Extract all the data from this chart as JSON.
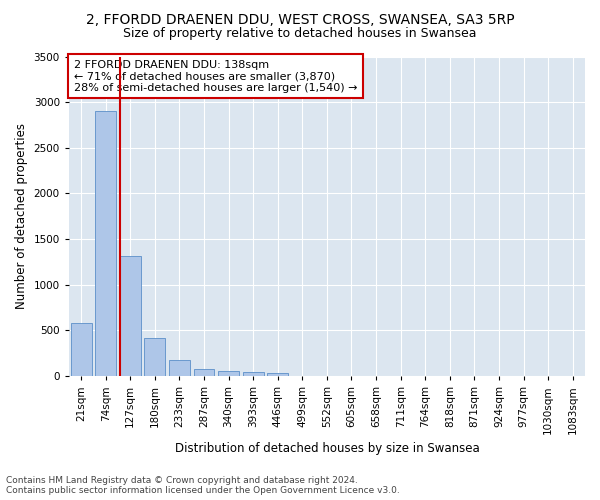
{
  "title": "2, FFORDD DRAENEN DDU, WEST CROSS, SWANSEA, SA3 5RP",
  "subtitle": "Size of property relative to detached houses in Swansea",
  "xlabel": "Distribution of detached houses by size in Swansea",
  "ylabel": "Number of detached properties",
  "categories": [
    "21sqm",
    "74sqm",
    "127sqm",
    "180sqm",
    "233sqm",
    "287sqm",
    "340sqm",
    "393sqm",
    "446sqm",
    "499sqm",
    "552sqm",
    "605sqm",
    "658sqm",
    "711sqm",
    "764sqm",
    "818sqm",
    "871sqm",
    "924sqm",
    "977sqm",
    "1030sqm",
    "1083sqm"
  ],
  "values": [
    580,
    2900,
    1320,
    415,
    170,
    80,
    50,
    45,
    35,
    0,
    0,
    0,
    0,
    0,
    0,
    0,
    0,
    0,
    0,
    0,
    0
  ],
  "bar_color": "#aec6e8",
  "bar_edge_color": "#5b8fc9",
  "vline_x_idx": 2,
  "vline_color": "#cc0000",
  "annotation_text": "2 FFORDD DRAENEN DDU: 138sqm\n← 71% of detached houses are smaller (3,870)\n28% of semi-detached houses are larger (1,540) →",
  "annotation_box_color": "#ffffff",
  "annotation_box_edge": "#cc0000",
  "ylim": [
    0,
    3500
  ],
  "yticks": [
    0,
    500,
    1000,
    1500,
    2000,
    2500,
    3000,
    3500
  ],
  "background_color": "#dce6f0",
  "footer_line1": "Contains HM Land Registry data © Crown copyright and database right 2024.",
  "footer_line2": "Contains public sector information licensed under the Open Government Licence v3.0.",
  "title_fontsize": 10,
  "subtitle_fontsize": 9,
  "axis_label_fontsize": 8.5,
  "tick_fontsize": 7.5,
  "annotation_fontsize": 8,
  "footer_fontsize": 6.5
}
